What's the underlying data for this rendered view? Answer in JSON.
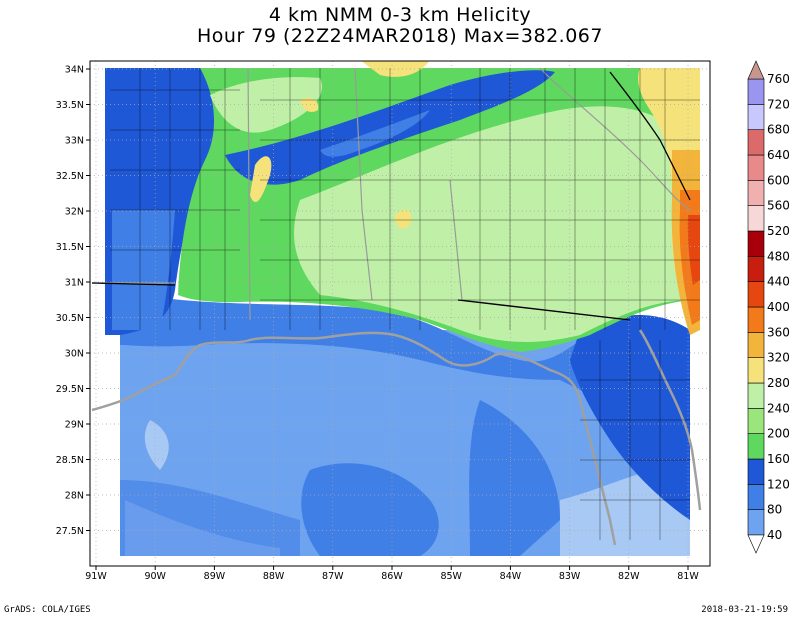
{
  "title_line1": "4 km NMM 0-3 km Helicity",
  "title_line2": "Hour 79 (22Z24MAR2018) Max=382.067",
  "lat_labels": [
    "34N",
    "33.5N",
    "33N",
    "32.5N",
    "32N",
    "31.5N",
    "31N",
    "30.5N",
    "30N",
    "29.5N",
    "29N",
    "28.5N",
    "28N",
    "27.5N"
  ],
  "lon_labels": [
    "91W",
    "90W",
    "89W",
    "88W",
    "87W",
    "86W",
    "85W",
    "84W",
    "83W",
    "82W",
    "81W"
  ],
  "colorbar": {
    "levels": [
      "40",
      "80",
      "120",
      "160",
      "200",
      "240",
      "280",
      "320",
      "360",
      "400",
      "440",
      "480",
      "520",
      "560",
      "600",
      "640",
      "680",
      "720",
      "760"
    ],
    "colors": [
      "#a9c9f5",
      "#6ea4ef",
      "#3f7fe6",
      "#1f58d6",
      "#5ed85e",
      "#9ae67c",
      "#c0f0a8",
      "#f6e27a",
      "#f2b43b",
      "#f27a1a",
      "#e6460f",
      "#c81e0f",
      "#a8000a",
      "#f6d8d8",
      "#f0b0b0",
      "#e88a8a",
      "#dd6a6a",
      "#c8c8ff",
      "#9a96f0",
      "#6a5ee0",
      "#4434c8",
      "#c8968c"
    ]
  },
  "footer_left": "GrADS: COLA/IGES",
  "footer_right": "2018-03-21-19:59"
}
